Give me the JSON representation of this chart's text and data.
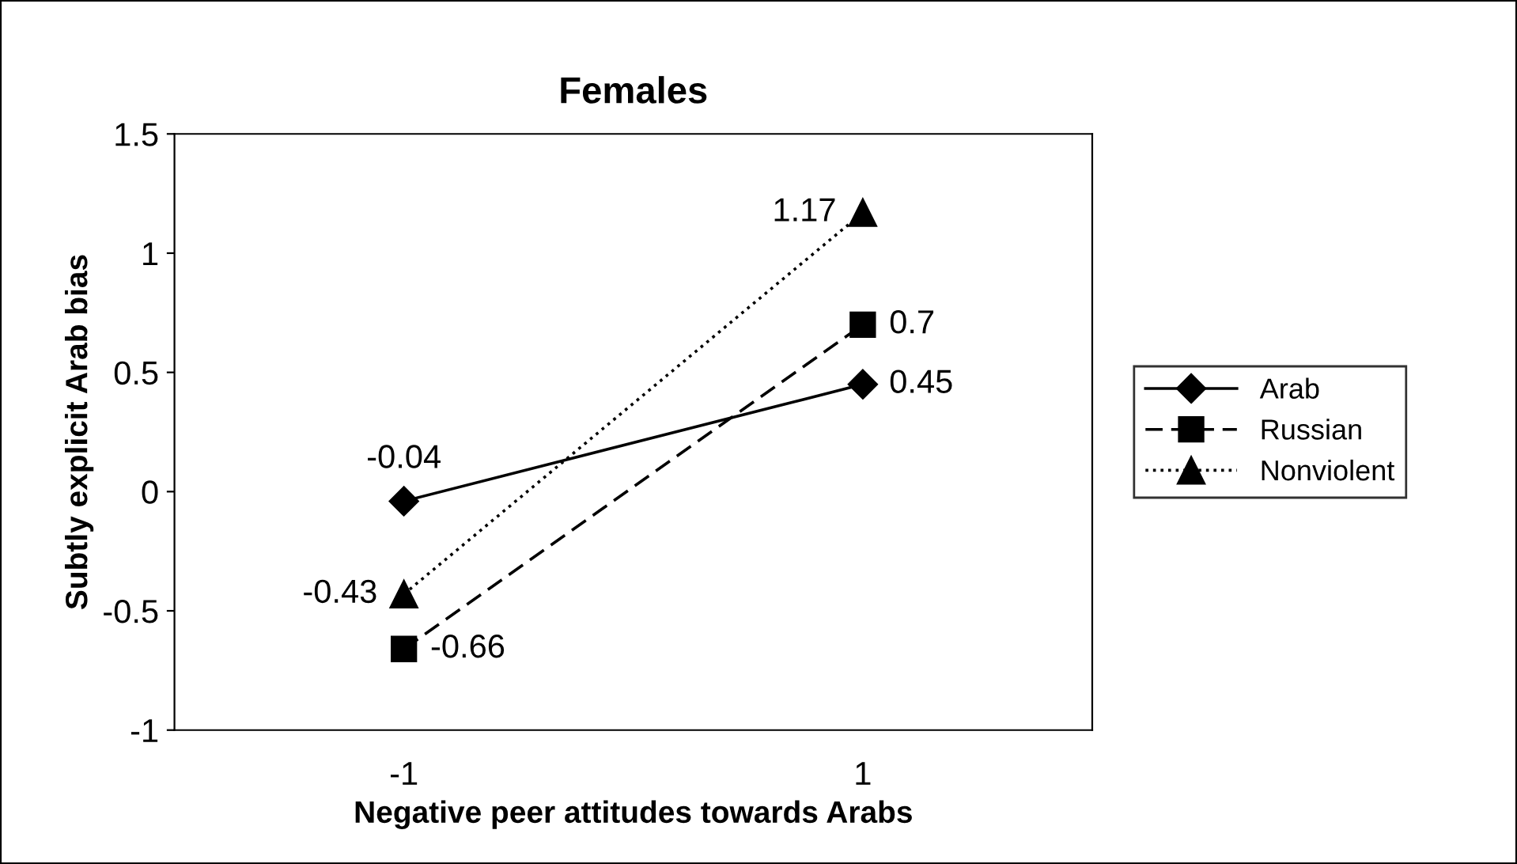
{
  "chart_data": {
    "type": "line",
    "title": "Females",
    "xlabel": "Negative peer attitudes towards Arabs",
    "ylabel": "Subtly explicit Arab bias",
    "categories": [
      "-1",
      "1"
    ],
    "series": [
      {
        "name": "Arab",
        "color": "#000000",
        "values": [
          -0.04,
          0.45
        ],
        "marker": "diamond",
        "line_style": "solid"
      },
      {
        "name": "Russian",
        "color": "#000000",
        "values": [
          -0.66,
          0.7
        ],
        "marker": "square",
        "line_style": "dashed"
      },
      {
        "name": "Nonviolent",
        "color": "#000000",
        "values": [
          -0.43,
          1.17
        ],
        "marker": "triangle",
        "line_style": "dotted"
      }
    ],
    "ylim": [
      -1,
      1.5
    ],
    "yticks": [
      -1,
      -0.5,
      0,
      0.5,
      1,
      1.5
    ],
    "grid": false,
    "legend": "right",
    "data_labels": true
  }
}
